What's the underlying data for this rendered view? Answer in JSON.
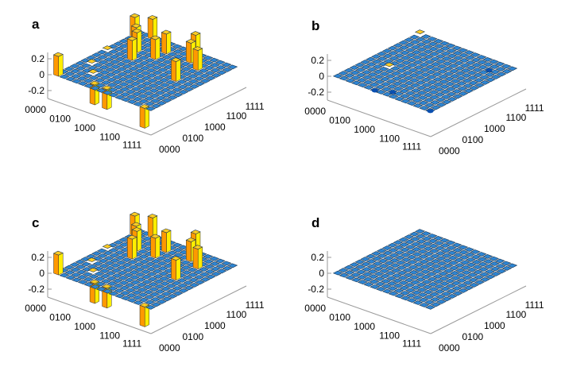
{
  "chart_data": [
    {
      "panel": "a",
      "type": "bar3d",
      "zticks": [
        "0.2",
        "0",
        "-0.2"
      ],
      "zlim": [
        -0.3,
        0.3
      ],
      "row_ticks": [
        "0000",
        "0100",
        "1000",
        "1100",
        "1111"
      ],
      "col_ticks": [
        "0000",
        "0100",
        "1000",
        "1100",
        "1111"
      ],
      "grid_size": 16,
      "bars": [
        [
          0,
          0,
          0.25
        ],
        [
          5,
          1,
          -0.25
        ],
        [
          7,
          1,
          -0.25
        ],
        [
          14,
          0,
          -0.25
        ],
        [
          4,
          9,
          0.25
        ],
        [
          3,
          11,
          0.25
        ],
        [
          6,
          11,
          0.25
        ],
        [
          2,
          12,
          0.25
        ],
        [
          6,
          13,
          0.25
        ],
        [
          0,
          14,
          0.25
        ],
        [
          2,
          15,
          0.25
        ],
        [
          9,
          15,
          0.25
        ],
        [
          12,
          12,
          0.25
        ],
        [
          10,
          13,
          0.25
        ],
        [
          12,
          8,
          0.25
        ],
        [
          1,
          5,
          0.02
        ],
        [
          3,
          3,
          0.02
        ],
        [
          0,
          9,
          0.02
        ]
      ]
    },
    {
      "panel": "b",
      "type": "bar3d",
      "zticks": [
        "0.2",
        "0",
        "-0.2"
      ],
      "zlim": [
        -0.3,
        0.3
      ],
      "row_ticks": [
        "0000",
        "0100",
        "1000",
        "1100",
        "1111"
      ],
      "col_ticks": [
        "0000",
        "0100",
        "1000",
        "1100",
        "1111"
      ],
      "grid_size": 16,
      "bars": [
        [
          0,
          15,
          0.03
        ],
        [
          15,
          0,
          -0.03
        ],
        [
          6,
          0,
          -0.02
        ],
        [
          8,
          1,
          -0.02
        ],
        [
          3,
          6,
          0.02
        ],
        [
          13,
          13,
          -0.02
        ]
      ]
    },
    {
      "panel": "c",
      "type": "bar3d",
      "zticks": [
        "0.2",
        "0",
        "-0.2"
      ],
      "zlim": [
        -0.3,
        0.3
      ],
      "row_ticks": [
        "0000",
        "0100",
        "1000",
        "1100",
        "1111"
      ],
      "col_ticks": [
        "0000",
        "0100",
        "1000",
        "1100",
        "1111"
      ],
      "grid_size": 16,
      "bars": [
        [
          0,
          0,
          0.25
        ],
        [
          5,
          1,
          -0.25
        ],
        [
          7,
          1,
          -0.25
        ],
        [
          14,
          0,
          -0.25
        ],
        [
          4,
          9,
          0.25
        ],
        [
          3,
          11,
          0.25
        ],
        [
          6,
          11,
          0.25
        ],
        [
          2,
          12,
          0.25
        ],
        [
          6,
          13,
          0.25
        ],
        [
          0,
          14,
          0.25
        ],
        [
          2,
          15,
          0.25
        ],
        [
          9,
          15,
          0.25
        ],
        [
          12,
          12,
          0.25
        ],
        [
          10,
          13,
          0.25
        ],
        [
          12,
          8,
          0.25
        ],
        [
          1,
          5,
          0.02
        ],
        [
          3,
          3,
          0.02
        ],
        [
          0,
          9,
          0.02
        ]
      ]
    },
    {
      "panel": "d",
      "type": "bar3d",
      "zticks": [
        "0.2",
        "0",
        "-0.2"
      ],
      "zlim": [
        -0.3,
        0.3
      ],
      "row_ticks": [
        "0000",
        "0100",
        "1000",
        "1100",
        "1111"
      ],
      "col_ticks": [
        "0000",
        "0100",
        "1000",
        "1100",
        "1111"
      ],
      "grid_size": 16,
      "bars": []
    }
  ],
  "colors": {
    "plane": "#2e86d4",
    "bar_front": "#ff9900",
    "bar_side": "#ffee00",
    "top": "#ffcc22",
    "edge": "#000000"
  }
}
